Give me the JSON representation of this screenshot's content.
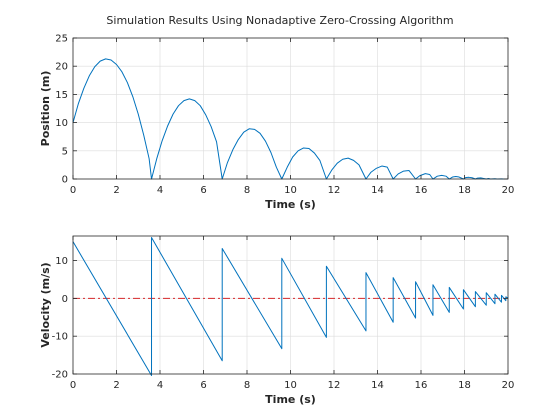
{
  "figure": {
    "title": "Simulation Results Using Nonadaptive Zero-Crossing Algorithm"
  },
  "colors": {
    "series": "#0072BD",
    "reference": "#D62728",
    "grid": "#DCDCDC",
    "axes": "#262626"
  },
  "chart_data": [
    {
      "type": "line",
      "title": "Simulation Results Using Nonadaptive Zero-Crossing Algorithm",
      "xlabel": "Time (s)",
      "ylabel": "Position (m)",
      "xlim": [
        0,
        20
      ],
      "ylim": [
        0,
        25
      ],
      "xticks": [
        0,
        2,
        4,
        6,
        8,
        10,
        12,
        14,
        16,
        18,
        20
      ],
      "xtick_labels": [
        "0",
        "2",
        "4",
        "6",
        "8",
        "10",
        "12",
        "14",
        "16",
        "18",
        "20"
      ],
      "yticks": [
        0,
        5,
        10,
        15,
        20,
        25
      ],
      "ytick_labels": [
        "0",
        "5",
        "10",
        "15",
        "20",
        "25"
      ],
      "grid": true,
      "series": [
        {
          "x": [
            0,
            0.25,
            0.5,
            0.75,
            1.0,
            1.25,
            1.5,
            1.75,
            2.0,
            2.25,
            2.5,
            2.75,
            3.0,
            3.25,
            3.5,
            3.61,
            3.85,
            4.1,
            4.35,
            4.6,
            4.85,
            5.1,
            5.35,
            5.6,
            5.85,
            6.1,
            6.35,
            6.6,
            6.86,
            7.1,
            7.35,
            7.6,
            7.85,
            8.1,
            8.35,
            8.6,
            8.85,
            9.1,
            9.35,
            9.6,
            9.85,
            10.1,
            10.35,
            10.6,
            10.85,
            11.1,
            11.35,
            11.65,
            11.9,
            12.15,
            12.4,
            12.65,
            12.9,
            13.15,
            13.47,
            13.7,
            13.95,
            14.2,
            14.45,
            14.72,
            14.95,
            15.2,
            15.45,
            15.75,
            15.95,
            16.2,
            16.4,
            16.55,
            16.75,
            16.95,
            17.15,
            17.3,
            17.45,
            17.6,
            17.75,
            17.95,
            18.05,
            18.2,
            18.35,
            18.5,
            18.6,
            18.75,
            18.85,
            19.0,
            19.1,
            19.2,
            19.4,
            19.5,
            19.7,
            19.8,
            20.0
          ],
          "values": [
            10.0,
            13.4,
            16.1,
            18.3,
            19.9,
            20.9,
            21.3,
            21.1,
            20.3,
            19.0,
            17.1,
            14.6,
            11.5,
            7.8,
            3.6,
            0.0,
            3.6,
            6.8,
            9.4,
            11.5,
            13.0,
            13.9,
            14.2,
            13.9,
            13.0,
            11.4,
            9.3,
            6.6,
            0.0,
            2.9,
            5.2,
            7.0,
            8.3,
            8.9,
            8.8,
            8.1,
            6.7,
            4.7,
            2.1,
            0.0,
            2.1,
            3.9,
            5.0,
            5.5,
            5.4,
            4.6,
            3.3,
            0.0,
            1.6,
            2.8,
            3.5,
            3.7,
            3.3,
            2.5,
            0.0,
            1.2,
            1.9,
            2.3,
            2.1,
            0.0,
            0.9,
            1.4,
            1.5,
            0.0,
            0.6,
            0.95,
            0.8,
            0.0,
            0.5,
            0.65,
            0.5,
            0.0,
            0.35,
            0.45,
            0.35,
            0.0,
            0.25,
            0.3,
            0.22,
            0.0,
            0.15,
            0.2,
            0.12,
            0.0,
            0.08,
            0.0,
            0.05,
            0.0,
            0.03,
            0.0,
            0.0
          ]
        }
      ]
    },
    {
      "type": "line",
      "xlabel": "Time (s)",
      "ylabel": "Velocity (m/s)",
      "xlim": [
        0,
        20
      ],
      "ylim": [
        -20,
        16.5
      ],
      "xticks": [
        0,
        2,
        4,
        6,
        8,
        10,
        12,
        14,
        16,
        18,
        20
      ],
      "xtick_labels": [
        "0",
        "2",
        "4",
        "6",
        "8",
        "10",
        "12",
        "14",
        "16",
        "18",
        "20"
      ],
      "yticks": [
        -20,
        -10,
        0,
        10
      ],
      "ytick_labels": [
        "-20",
        "-10",
        "0",
        "10"
      ],
      "grid": true,
      "reference_line": {
        "y": 0,
        "style": "dash-dot"
      },
      "series": [
        {
          "x": [
            0,
            3.61,
            3.61,
            6.86,
            6.86,
            9.6,
            9.6,
            11.65,
            11.65,
            13.47,
            13.47,
            14.72,
            14.72,
            15.75,
            15.75,
            16.55,
            16.55,
            17.3,
            17.3,
            17.95,
            17.95,
            18.5,
            18.5,
            19.0,
            19.0,
            19.4,
            19.4,
            19.7,
            19.7,
            19.9,
            19.9,
            20.0
          ],
          "values": [
            15.0,
            -20.4,
            16.1,
            -16.5,
            13.2,
            -13.3,
            10.6,
            -10.3,
            8.5,
            -8.6,
            6.8,
            -6.3,
            5.5,
            -5.2,
            4.4,
            -4.5,
            3.6,
            -3.7,
            2.9,
            -2.8,
            2.3,
            -2.2,
            1.8,
            -1.8,
            1.5,
            -1.4,
            1.1,
            -1.0,
            0.8,
            -0.6,
            0.4,
            0.1
          ]
        }
      ]
    }
  ]
}
